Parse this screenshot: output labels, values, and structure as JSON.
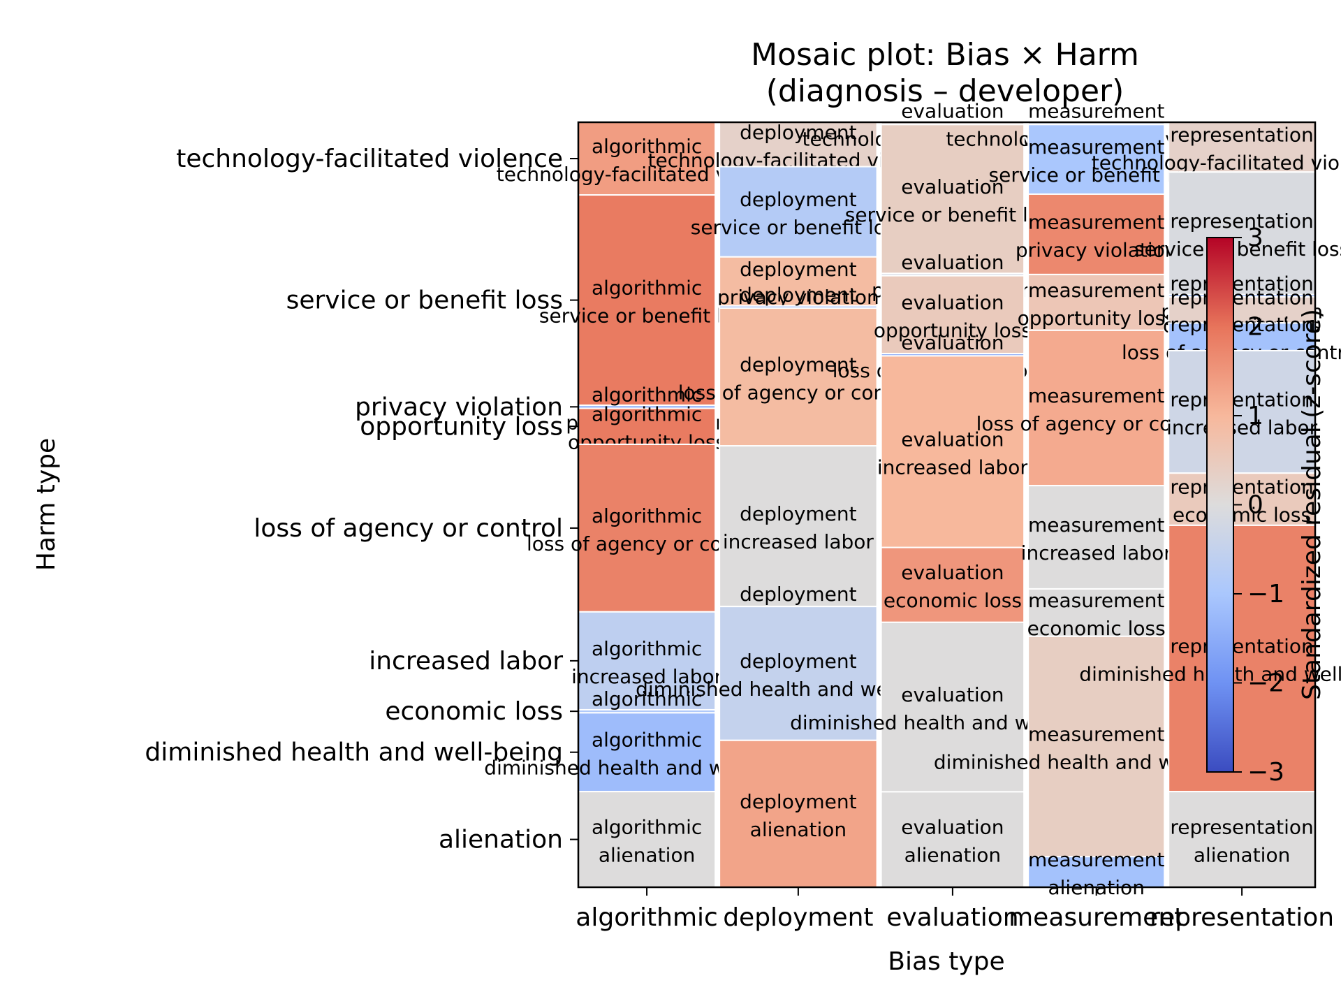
{
  "chart_data": {
    "type": "mosaic",
    "title": [
      "Mosaic plot: Bias × Harm",
      "(diagnosis – developer)"
    ],
    "xlabel": "Bias type",
    "ylabel": "Harm type",
    "colorbar_label": "Standardized residual (z-score)",
    "colorbar_range": [
      -3,
      3
    ],
    "colorbar_ticks": [
      "3",
      "2",
      "1",
      "0",
      "−1",
      "−2",
      "−3"
    ],
    "colormap": "coolwarm",
    "colormap_stops": [
      "#3b4cc0",
      "#6f92f3",
      "#aac7fd",
      "#dddcdc",
      "#f7b89c",
      "#e7745b",
      "#b40426"
    ],
    "bias_types": [
      "algorithmic",
      "deployment",
      "evaluation",
      "measurement",
      "representation"
    ],
    "column_widths": [
      0.187,
      0.215,
      0.195,
      0.186,
      0.2
    ],
    "harm_types": [
      "technology-facilitated violence",
      "service or benefit loss",
      "privacy violation",
      "opportunity loss",
      "loss of agency or control",
      "increased labor",
      "economic loss",
      "diminished health and well-being",
      "alienation"
    ],
    "columns": [
      {
        "bias": "algorithmic",
        "cells": [
          {
            "harm": "technology-facilitated violence",
            "proportion": 0.095,
            "residual": 1.4
          },
          {
            "harm": "service or benefit loss",
            "proportion": 0.275,
            "residual": 1.9
          },
          {
            "harm": "privacy violation",
            "proportion": 0.004,
            "residual": -1.3
          },
          {
            "harm": "opportunity loss",
            "proportion": 0.047,
            "residual": 1.9
          },
          {
            "harm": "loss of agency or control",
            "proportion": 0.219,
            "residual": 1.8
          },
          {
            "harm": "increased labor",
            "proportion": 0.128,
            "residual": -0.6
          },
          {
            "harm": "economic loss",
            "proportion": 0.004,
            "residual": -0.9
          },
          {
            "harm": "diminished health and well-being",
            "proportion": 0.103,
            "residual": -1.2
          },
          {
            "harm": "alienation",
            "proportion": 0.125,
            "residual": 0.0
          }
        ]
      },
      {
        "bias": "deployment",
        "cells": [
          {
            "harm": "technology-facilitated violence",
            "proportion": 0.058,
            "residual": 0.3
          },
          {
            "harm": "service or benefit loss",
            "proportion": 0.118,
            "residual": -0.8
          },
          {
            "harm": "privacy violation",
            "proportion": 0.064,
            "residual": 0.9
          },
          {
            "harm": "opportunity loss",
            "proportion": 0.003,
            "residual": -1.3
          },
          {
            "harm": "loss of agency or control",
            "proportion": 0.18,
            "residual": 0.9
          },
          {
            "harm": "increased labor",
            "proportion": 0.21,
            "residual": 0.0
          },
          {
            "harm": "economic loss",
            "proportion": 0.0,
            "residual": -0.5
          },
          {
            "harm": "diminished health and well-being",
            "proportion": 0.175,
            "residual": -0.5
          },
          {
            "harm": "alienation",
            "proportion": 0.192,
            "residual": 1.3
          }
        ]
      },
      {
        "bias": "evaluation",
        "cells": [
          {
            "harm": "technology-facilitated violence",
            "proportion": 0.003,
            "residual": 0.1
          },
          {
            "harm": "service or benefit loss",
            "proportion": 0.195,
            "residual": 0.4
          },
          {
            "harm": "privacy violation",
            "proportion": 0.003,
            "residual": -0.2
          },
          {
            "harm": "opportunity loss",
            "proportion": 0.102,
            "residual": 0.5
          },
          {
            "harm": "loss of agency or control",
            "proportion": 0.003,
            "residual": -1.5
          },
          {
            "harm": "increased labor",
            "proportion": 0.251,
            "residual": 1.0
          },
          {
            "harm": "economic loss",
            "proportion": 0.098,
            "residual": 1.5
          },
          {
            "harm": "diminished health and well-being",
            "proportion": 0.222,
            "residual": 0.0
          },
          {
            "harm": "alienation",
            "proportion": 0.125,
            "residual": 0.0
          }
        ]
      },
      {
        "bias": "measurement",
        "cells": [
          {
            "harm": "technology-facilitated violence",
            "proportion": 0.003,
            "residual": -0.2
          },
          {
            "harm": "service or benefit loss",
            "proportion": 0.091,
            "residual": -1.0
          },
          {
            "harm": "privacy violation",
            "proportion": 0.105,
            "residual": 1.7
          },
          {
            "harm": "opportunity loss",
            "proportion": 0.073,
            "residual": 0.6
          },
          {
            "harm": "loss of agency or control",
            "proportion": 0.203,
            "residual": 1.2
          },
          {
            "harm": "increased labor",
            "proportion": 0.135,
            "residual": 0.0
          },
          {
            "harm": "economic loss",
            "proportion": 0.062,
            "residual": 0.0
          },
          {
            "harm": "diminished health and well-being",
            "proportion": 0.288,
            "residual": 0.4
          },
          {
            "harm": "alienation",
            "proportion": 0.04,
            "residual": -1.1
          }
        ]
      },
      {
        "bias": "representation",
        "cells": [
          {
            "harm": "technology-facilitated violence",
            "proportion": 0.063,
            "residual": 0.3
          },
          {
            "harm": "service or benefit loss",
            "proportion": 0.155,
            "residual": -0.1
          },
          {
            "harm": "privacy violation",
            "proportion": 0.003,
            "residual": -1.2
          },
          {
            "harm": "opportunity loss",
            "proportion": 0.033,
            "residual": 0.3
          },
          {
            "harm": "loss of agency or control",
            "proportion": 0.035,
            "residual": -1.1
          },
          {
            "harm": "increased labor",
            "proportion": 0.155,
            "residual": -0.3
          },
          {
            "harm": "economic loss",
            "proportion": 0.066,
            "residual": 0.5
          },
          {
            "harm": "diminished health and well-being",
            "proportion": 0.337,
            "residual": 1.8
          },
          {
            "harm": "alienation",
            "proportion": 0.121,
            "residual": 0.0
          }
        ]
      }
    ]
  }
}
